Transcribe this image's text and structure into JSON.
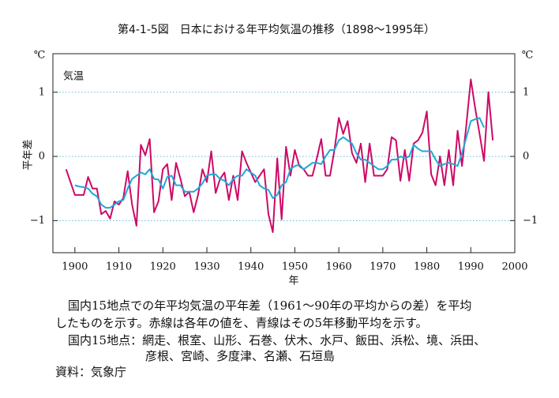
{
  "chart_data": {
    "type": "line",
    "title": "第4-1-5図　日本における年平均気温の推移（1898〜1995年）",
    "y_unit": "℃",
    "inner_label": "気温",
    "ylabel": "平年差",
    "xlabel": "年",
    "x": [
      1898,
      1899,
      1900,
      1901,
      1902,
      1903,
      1904,
      1905,
      1906,
      1907,
      1908,
      1909,
      1910,
      1911,
      1912,
      1913,
      1914,
      1915,
      1916,
      1917,
      1918,
      1919,
      1920,
      1921,
      1922,
      1923,
      1924,
      1925,
      1926,
      1927,
      1928,
      1929,
      1930,
      1931,
      1932,
      1933,
      1934,
      1935,
      1936,
      1937,
      1938,
      1939,
      1940,
      1941,
      1942,
      1943,
      1944,
      1945,
      1946,
      1947,
      1948,
      1949,
      1950,
      1951,
      1952,
      1953,
      1954,
      1955,
      1956,
      1957,
      1958,
      1959,
      1960,
      1961,
      1962,
      1963,
      1964,
      1965,
      1966,
      1967,
      1968,
      1969,
      1970,
      1971,
      1972,
      1973,
      1974,
      1975,
      1976,
      1977,
      1978,
      1979,
      1980,
      1981,
      1982,
      1983,
      1984,
      1985,
      1986,
      1987,
      1988,
      1989,
      1990,
      1991,
      1992,
      1993,
      1994,
      1995
    ],
    "series": [
      {
        "color": "#cc0a66",
        "values": [
          -0.2,
          -0.4,
          -0.6,
          -0.6,
          -0.6,
          -0.32,
          -0.5,
          -0.5,
          -0.9,
          -0.85,
          -0.97,
          -0.7,
          -0.75,
          -0.65,
          -0.23,
          -0.75,
          -1.08,
          0.18,
          0.02,
          0.27,
          -0.87,
          -0.7,
          -0.2,
          -0.12,
          -0.68,
          -0.1,
          -0.35,
          -0.62,
          -0.55,
          -0.87,
          -0.6,
          -0.2,
          -0.4,
          0.08,
          -0.57,
          -0.35,
          -0.25,
          -0.68,
          -0.3,
          -0.68,
          0.08,
          -0.1,
          -0.25,
          -0.4,
          -0.3,
          -0.2,
          -0.9,
          -1.18,
          -0.03,
          -0.98,
          0.15,
          -0.3,
          0.1,
          -0.15,
          -0.2,
          -0.3,
          -0.3,
          -0.03,
          0.27,
          -0.3,
          -0.3,
          0.1,
          0.6,
          0.35,
          0.55,
          0.05,
          -0.1,
          0.2,
          -0.4,
          0.2,
          -0.3,
          -0.3,
          -0.3,
          -0.2,
          0.3,
          0.25,
          -0.38,
          0.1,
          -0.38,
          0.2,
          0.25,
          0.37,
          0.7,
          -0.28,
          -0.45,
          0.0,
          -0.45,
          0.1,
          -0.45,
          0.4,
          -0.15,
          0.5,
          1.2,
          0.75,
          0.35,
          -0.07,
          1.0,
          0.25
        ]
      },
      {
        "color": "#1fa8d8",
        "values": [
          null,
          null,
          -0.45,
          -0.47,
          -0.48,
          -0.5,
          -0.58,
          -0.62,
          -0.75,
          -0.8,
          -0.8,
          -0.75,
          -0.7,
          -0.68,
          -0.5,
          -0.35,
          -0.3,
          -0.25,
          -0.28,
          -0.2,
          -0.35,
          -0.36,
          -0.5,
          -0.32,
          -0.3,
          -0.45,
          -0.45,
          -0.55,
          -0.55,
          -0.55,
          -0.5,
          -0.42,
          -0.3,
          -0.28,
          -0.28,
          -0.35,
          -0.38,
          -0.45,
          -0.35,
          -0.3,
          -0.3,
          -0.2,
          -0.25,
          -0.3,
          -0.45,
          -0.5,
          -0.52,
          -0.65,
          -0.6,
          -0.45,
          -0.4,
          -0.2,
          -0.15,
          -0.13,
          -0.2,
          -0.15,
          -0.1,
          -0.1,
          -0.12,
          0.0,
          0.1,
          0.1,
          0.25,
          0.3,
          0.25,
          0.2,
          0.05,
          -0.05,
          -0.05,
          -0.1,
          -0.15,
          -0.2,
          -0.2,
          -0.15,
          -0.05,
          -0.05,
          0.0,
          -0.03,
          0.0,
          0.18,
          0.12,
          0.08,
          0.08,
          0.08,
          -0.05,
          -0.15,
          -0.12,
          -0.1,
          -0.12,
          -0.15,
          0.05,
          0.3,
          0.55,
          0.58,
          0.6,
          0.45,
          null,
          null
        ]
      }
    ],
    "xlim": [
      1895,
      2000
    ],
    "xticks": [
      1900,
      1910,
      1920,
      1930,
      1940,
      1950,
      1960,
      1970,
      1980,
      1990,
      2000
    ],
    "ylim": [
      -1.5,
      1.6
    ],
    "yticks": [
      {
        "value": -1,
        "label": "−1"
      },
      0,
      1
    ],
    "grid": true,
    "notes": [
      "国内15地点での年平均気温の平年差（1961〜90年の平均からの差）を平均",
      "したものを示す。赤線は各年の値を、青線はその5年移動平均を示す。",
      "国内15地点：網走、根室、山形、石巻、伏木、水戸、飯田、浜松、境、浜田、",
      "彦根、宮崎、多度津、名瀬、石垣島",
      "資料：気象庁"
    ]
  }
}
